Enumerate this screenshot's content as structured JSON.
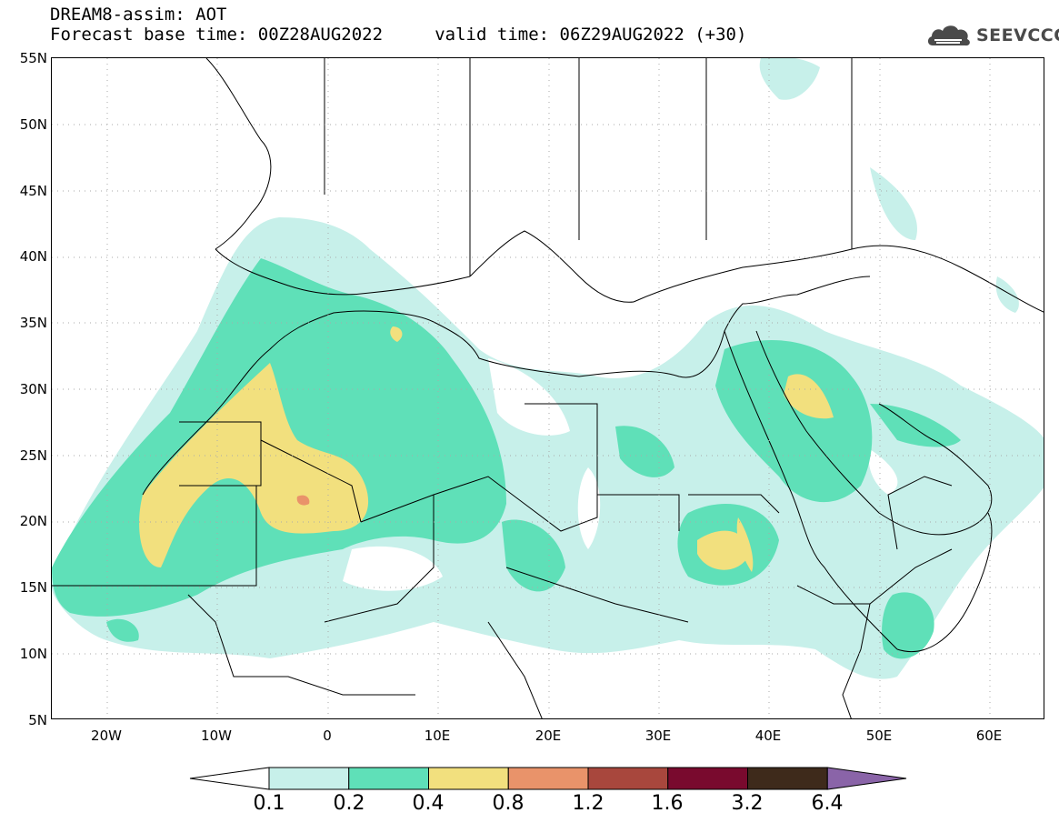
{
  "header": {
    "title_line1": "DREAM8-assim: AOT",
    "title_line2": "Forecast base time: 00Z28AUG2022     valid time: 06Z29AUG2022 (+30)"
  },
  "logo": {
    "text": "SEEVCCC",
    "icon": "cloud-logo-icon"
  },
  "map": {
    "lat_labels": [
      "55N",
      "50N",
      "45N",
      "40N",
      "35N",
      "30N",
      "25N",
      "20N",
      "15N",
      "10N",
      "5N"
    ],
    "lon_labels": [
      "20W",
      "10W",
      "0",
      "10E",
      "20E",
      "30E",
      "40E",
      "50E",
      "60E"
    ],
    "lat_range": [
      5,
      55
    ],
    "lon_range": [
      -25,
      65
    ],
    "grid": true
  },
  "colorbar": {
    "thresholds": [
      "0.1",
      "0.2",
      "0.4",
      "0.8",
      "1.2",
      "1.6",
      "3.2",
      "6.4"
    ],
    "colors": [
      "#ffffff",
      "#c7f0ea",
      "#5fe0b8",
      "#f2e07e",
      "#e9936a",
      "#a8473d",
      "#790a2e",
      "#3e2a1b",
      "#8a64a8"
    ]
  }
}
